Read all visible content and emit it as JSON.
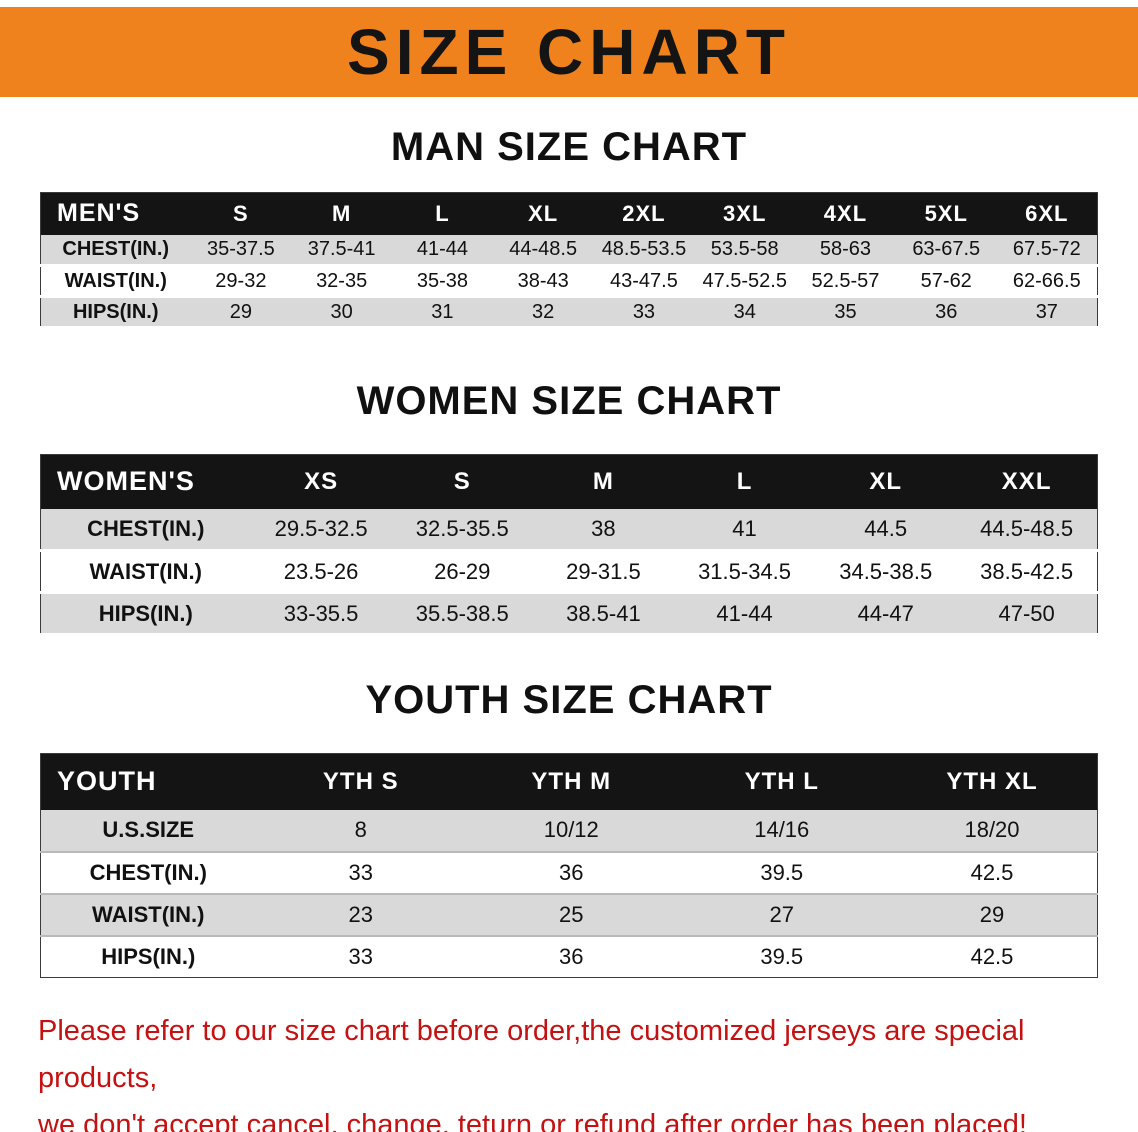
{
  "banner": {
    "title": "SIZE CHART"
  },
  "colors": {
    "banner_bg": "#f0821e",
    "table_header_bg": "#141414",
    "row_stripe": "#d9d9d9",
    "notice_red": "#c41111"
  },
  "sections": [
    {
      "id": "men",
      "title": "MAN SIZE CHART",
      "corner_label": "MEN'S",
      "columns": [
        "S",
        "M",
        "L",
        "XL",
        "2XL",
        "3XL",
        "4XL",
        "5XL",
        "6XL"
      ],
      "rows": [
        {
          "label": "CHEST(IN.)",
          "values": [
            "35-37.5",
            "37.5-41",
            "41-44",
            "44-48.5",
            "48.5-53.5",
            "53.5-58",
            "58-63",
            "63-67.5",
            "67.5-72"
          ]
        },
        {
          "label": "WAIST(IN.)",
          "values": [
            "29-32",
            "32-35",
            "35-38",
            "38-43",
            "43-47.5",
            "47.5-52.5",
            "52.5-57",
            "57-62",
            "62-66.5"
          ]
        },
        {
          "label": "HIPS(IN.)",
          "values": [
            "29",
            "30",
            "31",
            "32",
            "33",
            "34",
            "35",
            "36",
            "37"
          ]
        }
      ]
    },
    {
      "id": "women",
      "title": "WOMEN SIZE CHART",
      "corner_label": "WOMEN'S",
      "columns": [
        "XS",
        "S",
        "M",
        "L",
        "XL",
        "XXL"
      ],
      "rows": [
        {
          "label": "CHEST(IN.)",
          "values": [
            "29.5-32.5",
            "32.5-35.5",
            "38",
            "41",
            "44.5",
            "44.5-48.5"
          ]
        },
        {
          "label": "WAIST(IN.)",
          "values": [
            "23.5-26",
            "26-29",
            "29-31.5",
            "31.5-34.5",
            "34.5-38.5",
            "38.5-42.5"
          ]
        },
        {
          "label": "HIPS(IN.)",
          "values": [
            "33-35.5",
            "35.5-38.5",
            "38.5-41",
            "41-44",
            "44-47",
            "47-50"
          ]
        }
      ]
    },
    {
      "id": "youth",
      "title": "YOUTH SIZE CHART",
      "corner_label": "YOUTH",
      "columns": [
        "YTH S",
        "YTH M",
        "YTH L",
        "YTH XL"
      ],
      "rows": [
        {
          "label": "U.S.SIZE",
          "values": [
            "8",
            "10/12",
            "14/16",
            "18/20"
          ]
        },
        {
          "label": "CHEST(IN.)",
          "values": [
            "33",
            "36",
            "39.5",
            "42.5"
          ]
        },
        {
          "label": "WAIST(IN.)",
          "values": [
            "23",
            "25",
            "27",
            "29"
          ]
        },
        {
          "label": "HIPS(IN.)",
          "values": [
            "33",
            "36",
            "39.5",
            "42.5"
          ]
        }
      ]
    }
  ],
  "footer": {
    "line1": "Please refer to our size chart before order,the customized jerseys are special products,",
    "line2": "we don't accept cancel, change, teturn or refund after order has been placed!"
  }
}
